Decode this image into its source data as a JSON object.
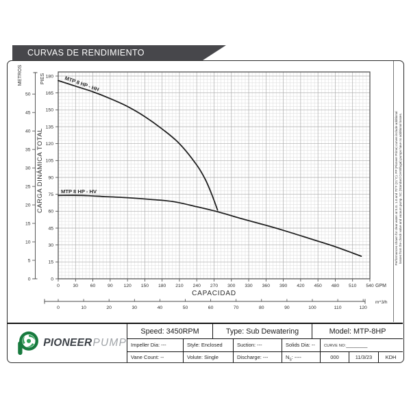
{
  "banner": {
    "title": "CURVAS DE RENDIMIENTO"
  },
  "chart_data": {
    "type": "line",
    "title": "",
    "xlabel": "CAPACIDAD",
    "x_unit_primary": "GPM",
    "x_unit_secondary": "m^3/h",
    "ylabel": "CARGA DINÁMICA TOTAL",
    "y_unit_inner": "PIES",
    "y_unit_outer": "METROS",
    "x_range_gpm": [
      0,
      540
    ],
    "x_tick_step_gpm": 30,
    "x_range_m3h": [
      0,
      120
    ],
    "x_tick_step_m3h": 10,
    "y_range_pies": [
      0,
      180
    ],
    "y_tick_step_pies": 15,
    "y_range_metros": [
      0,
      50
    ],
    "y_tick_step_metros": 5,
    "grid": "on",
    "series": [
      {
        "name": "MTP 8 HP - HH",
        "points_gpm_ft": [
          [
            0,
            176
          ],
          [
            30,
            171
          ],
          [
            60,
            166
          ],
          [
            90,
            160
          ],
          [
            120,
            153
          ],
          [
            150,
            144
          ],
          [
            180,
            133
          ],
          [
            210,
            120
          ],
          [
            240,
            101
          ],
          [
            255,
            88
          ],
          [
            266,
            75
          ],
          [
            276,
            61
          ]
        ]
      },
      {
        "name": "MTP 8 HP - HV",
        "points_gpm_ft": [
          [
            0,
            74
          ],
          [
            40,
            74
          ],
          [
            80,
            73
          ],
          [
            120,
            72
          ],
          [
            160,
            70.5
          ],
          [
            200,
            68.5
          ],
          [
            240,
            64
          ],
          [
            280,
            59
          ],
          [
            320,
            53
          ],
          [
            360,
            47.5
          ],
          [
            400,
            41.5
          ],
          [
            440,
            35
          ],
          [
            480,
            28.5
          ],
          [
            525,
            20
          ]
        ]
      }
    ]
  },
  "side_note": {
    "line1": "Performances shown for clear water at S.G. 1.0 and 70°F (21°C). PP (Pioneer Prime) curves include additional",
    "line2": "losses from the check valve and vacuum pump. SC (Standard Centrifugal) pumps have no additional losses."
  },
  "footer": {
    "logo": {
      "brand_bold": "PIONEER",
      "brand_light": "PUMP"
    },
    "row1": {
      "speed": "Speed: 3450RPM",
      "type": "Type: Sub Dewatering",
      "model": "Model: MTP-8HP"
    },
    "row2": {
      "impeller": "Impeller Dia: ---",
      "style": "Style: Enclosed",
      "suction": "Suction: ---",
      "solids": "Solids Dia: --",
      "curve_no_label": "CURVE NO:",
      "curve_no_value": "________"
    },
    "row3": {
      "vane": "Vane Count: --",
      "volute": "Volute: Single",
      "discharge": "Discharge: ---",
      "ns_n": "N",
      "ns_sub": "S",
      "ns_rest": ": ----",
      "num": "000",
      "date": "11/3/23",
      "initials": "KDH"
    }
  },
  "colors": {
    "banner_bg": "#47474b",
    "grid_minor": "#dadada",
    "grid_major": "#ababab",
    "plot_border": "#4a4a4a",
    "curve": "#1f1f1f",
    "logo_green": "#177a3e",
    "text": "#2b2b2b"
  }
}
